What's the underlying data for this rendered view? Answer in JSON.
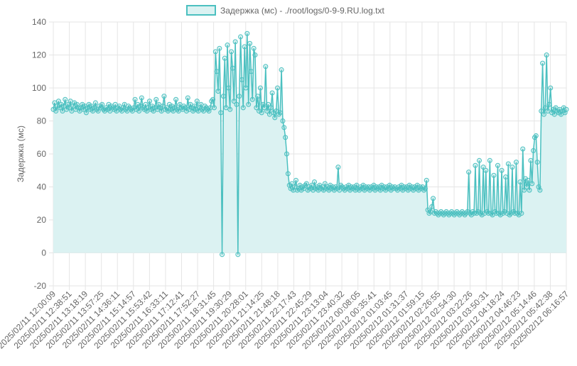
{
  "chart_data": {
    "type": "line",
    "title": "",
    "xlabel": "",
    "ylabel": "Задержка (мс)",
    "ylim": [
      -20,
      140
    ],
    "yticks": [
      -20,
      0,
      20,
      40,
      60,
      80,
      100,
      120,
      140
    ],
    "grid": true,
    "legend_position": "top",
    "fill": true,
    "colors": {
      "line": "#4bc0c0",
      "fill": "#dbf2f2",
      "grid": "#e5e5e5",
      "text": "#666666"
    },
    "x_ticks": [
      "2025/02/11 12:00:09",
      "2025/02/11 12:38:51",
      "2025/02/11 13:18:19",
      "2025/02/11 13:57:25",
      "2025/02/11 14:36:11",
      "2025/02/11 15:14:57",
      "2025/02/11 15:53:42",
      "2025/02/11 16:33:11",
      "2025/02/11 17:12:41",
      "2025/02/11 17:52:27",
      "2025/02/11 18:31:45",
      "2025/02/11 19:30:29",
      "2025/02/11 20:28:01",
      "2025/02/11 21:14:25",
      "2025/02/11 21:48:18",
      "2025/02/11 22:17:43",
      "2025/02/11 22:45:29",
      "2025/02/11 23:13:04",
      "2025/02/11 23:40:32",
      "2025/02/12 00:08:05",
      "2025/02/12 00:35:41",
      "2025/02/12 01:03:45",
      "2025/02/12 01:31:37",
      "2025/02/12 01:59:15",
      "2025/02/12 02:26:55",
      "2025/02/12 02:54:30",
      "2025/02/12 03:22:26",
      "2025/02/12 03:50:31",
      "2025/02/12 04:18:24",
      "2025/02/12 04:46:23",
      "2025/02/12 05:14:46",
      "2025/02/12 05:42:38",
      "2025/02/12 06:16:57"
    ],
    "series": [
      {
        "name": "Задержка (мс) - ./root/logs/0-9-9.RU.log.txt",
        "values": [
          87,
          91,
          86,
          89,
          92,
          88,
          90,
          86,
          89,
          93,
          87,
          90,
          88,
          92,
          86,
          89,
          91,
          87,
          90,
          88,
          86,
          88,
          90,
          87,
          89,
          85,
          88,
          90,
          87,
          89,
          86,
          88,
          91,
          87,
          86,
          89,
          88,
          90,
          87,
          86,
          88,
          87,
          90,
          86,
          89,
          88,
          87,
          90,
          86,
          88,
          89,
          87,
          86,
          88,
          90,
          87,
          86,
          89,
          88,
          87,
          86,
          88,
          93,
          87,
          90,
          86,
          89,
          94,
          88,
          87,
          90,
          86,
          88,
          92,
          87,
          89,
          86,
          88,
          93,
          87,
          90,
          88,
          86,
          89,
          95,
          87,
          88,
          86,
          90,
          87,
          89,
          86,
          88,
          93,
          87,
          86,
          90,
          88,
          87,
          89,
          88,
          86,
          94,
          87,
          90,
          88,
          86,
          89,
          87,
          92,
          86,
          88,
          90,
          87,
          86,
          89,
          88,
          87,
          86,
          88,
          92,
          93,
          88,
          122,
          110,
          98,
          124,
          85,
          -1,
          95,
          118,
          88,
          126,
          100,
          87,
          122,
          112,
          92,
          128,
          90,
          -1,
          95,
          131,
          105,
          88,
          125,
          100,
          133,
          90,
          127,
          110,
          93,
          124,
          120,
          88,
          95,
          86,
          100,
          85,
          90,
          88,
          113,
          86,
          90,
          84,
          88,
          97,
          85,
          82,
          86,
          100,
          84,
          85,
          111,
          80,
          76,
          70,
          60,
          48,
          41,
          39,
          42,
          38,
          40,
          44,
          38,
          39,
          41,
          38,
          40,
          39,
          41,
          42,
          38,
          40,
          39,
          41,
          38,
          43,
          39,
          40,
          38,
          41,
          39,
          40,
          38,
          42,
          39,
          40,
          38,
          41,
          39,
          40,
          38,
          40,
          39,
          52,
          38,
          41,
          40,
          39,
          38,
          40,
          39,
          41,
          38,
          40,
          39,
          40,
          38,
          41,
          39,
          38,
          40,
          39,
          41,
          38,
          40,
          39,
          40,
          38,
          40,
          39,
          41,
          38,
          40,
          39,
          40,
          38,
          41,
          39,
          40,
          38,
          40,
          39,
          41,
          38,
          40,
          39,
          40,
          39,
          38,
          40,
          39,
          41,
          38,
          40,
          39,
          40,
          38,
          41,
          39,
          40,
          38,
          40,
          39,
          41,
          38,
          40,
          39,
          40,
          38,
          39,
          44,
          26,
          24,
          25,
          28,
          33,
          24,
          25,
          24,
          23,
          24,
          25,
          24,
          23,
          24,
          25,
          24,
          23,
          24,
          25,
          24,
          23,
          24,
          25,
          24,
          23,
          24,
          25,
          24,
          23,
          24,
          25,
          49,
          24,
          23,
          25,
          24,
          53,
          24,
          25,
          56,
          24,
          23,
          52,
          24,
          50,
          25,
          24,
          56,
          24,
          23,
          47,
          25,
          24,
          53,
          24,
          23,
          50,
          24,
          25,
          46,
          24,
          54,
          23,
          24,
          52,
          25,
          24,
          55,
          24,
          23,
          43,
          24,
          63,
          38,
          45,
          40,
          44,
          38,
          56,
          42,
          62,
          70,
          71,
          55,
          40,
          38,
          86,
          115,
          84,
          88,
          120,
          86,
          90,
          100,
          85,
          87,
          84,
          88,
          86,
          85,
          87,
          84,
          86,
          88,
          85,
          87
        ]
      }
    ]
  }
}
